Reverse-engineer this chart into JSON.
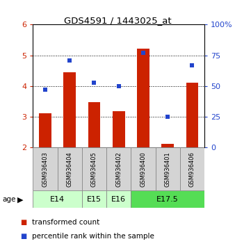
{
  "title": "GDS4591 / 1443025_at",
  "samples": [
    "GSM936403",
    "GSM936404",
    "GSM936405",
    "GSM936402",
    "GSM936400",
    "GSM936401",
    "GSM936406"
  ],
  "transformed_counts": [
    3.12,
    4.45,
    3.48,
    3.18,
    5.22,
    2.12,
    4.12
  ],
  "percentile_ranks": [
    47,
    71,
    53,
    50,
    77,
    25,
    67
  ],
  "ylim_left": [
    2,
    6
  ],
  "ylim_right": [
    0,
    100
  ],
  "yticks_left": [
    2,
    3,
    4,
    5,
    6
  ],
  "yticks_right": [
    0,
    25,
    50,
    75,
    100
  ],
  "bar_color": "#cc2200",
  "dot_color": "#2244cc",
  "age_groups": [
    {
      "label": "E14",
      "start": 0,
      "end": 1,
      "color": "#ccffcc"
    },
    {
      "label": "E15",
      "start": 2,
      "end": 2,
      "color": "#ccffcc"
    },
    {
      "label": "E16",
      "start": 3,
      "end": 3,
      "color": "#ccffcc"
    },
    {
      "label": "E17.5",
      "start": 4,
      "end": 6,
      "color": "#55dd55"
    }
  ],
  "legend_bar_label": "transformed count",
  "legend_dot_label": "percentile rank within the sample",
  "bar_width": 0.5,
  "bar_baseline": 2.0,
  "bg_color": "#ffffff"
}
